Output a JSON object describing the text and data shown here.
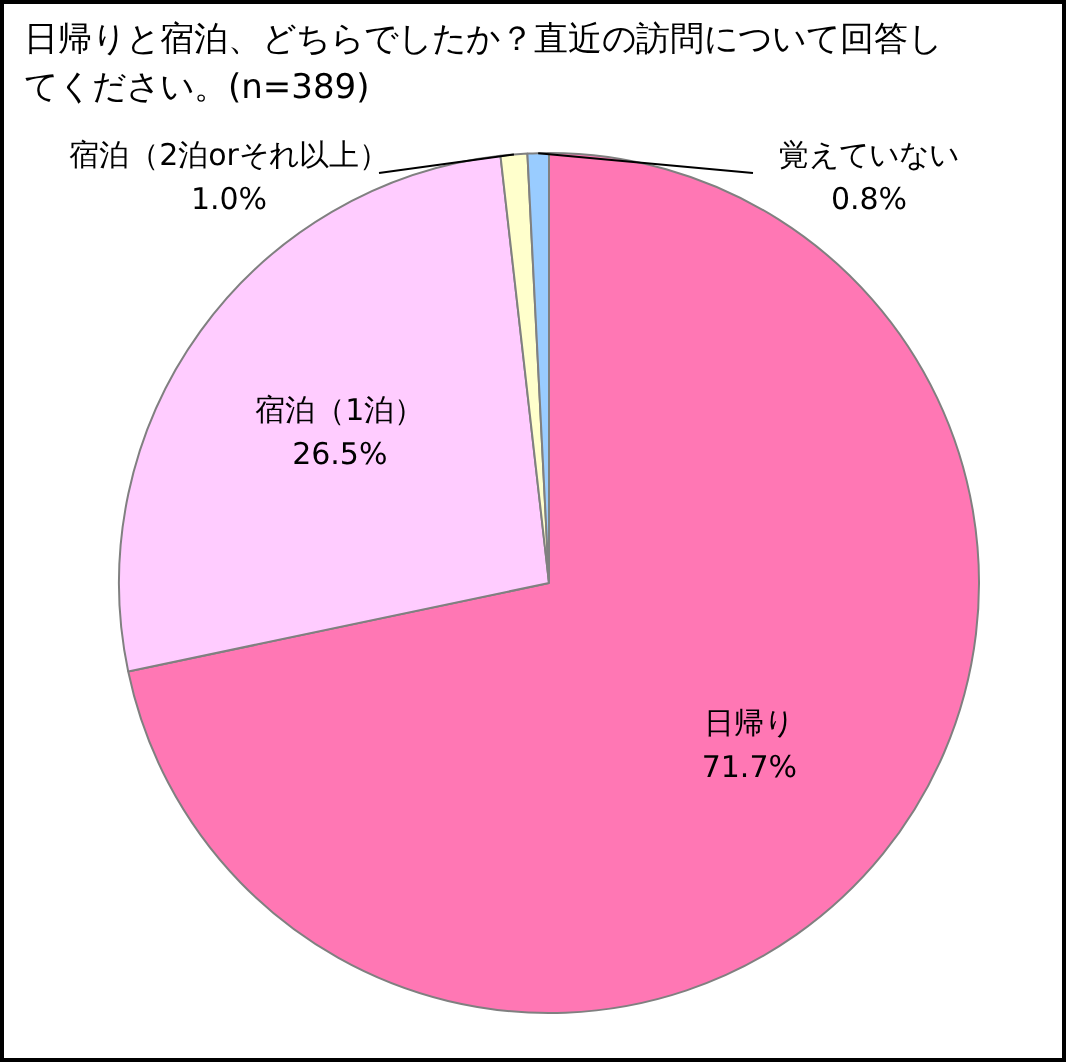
{
  "chart_data": {
    "type": "pie",
    "title": "日帰りと宿泊、どちらでしたか？直近の訪問について回答してください。(n=389)",
    "categories": [
      "日帰り",
      "宿泊（1泊）",
      "宿泊（2泊orそれ以上）",
      "覚えていない"
    ],
    "values": [
      71.7,
      26.5,
      1.0,
      0.8
    ],
    "colors": [
      "#ff77b4",
      "#ffccff",
      "#ffffcc",
      "#99ccff"
    ],
    "value_labels": [
      "71.7%",
      "26.5%",
      "1.0%",
      "0.8%"
    ],
    "legend": false
  }
}
